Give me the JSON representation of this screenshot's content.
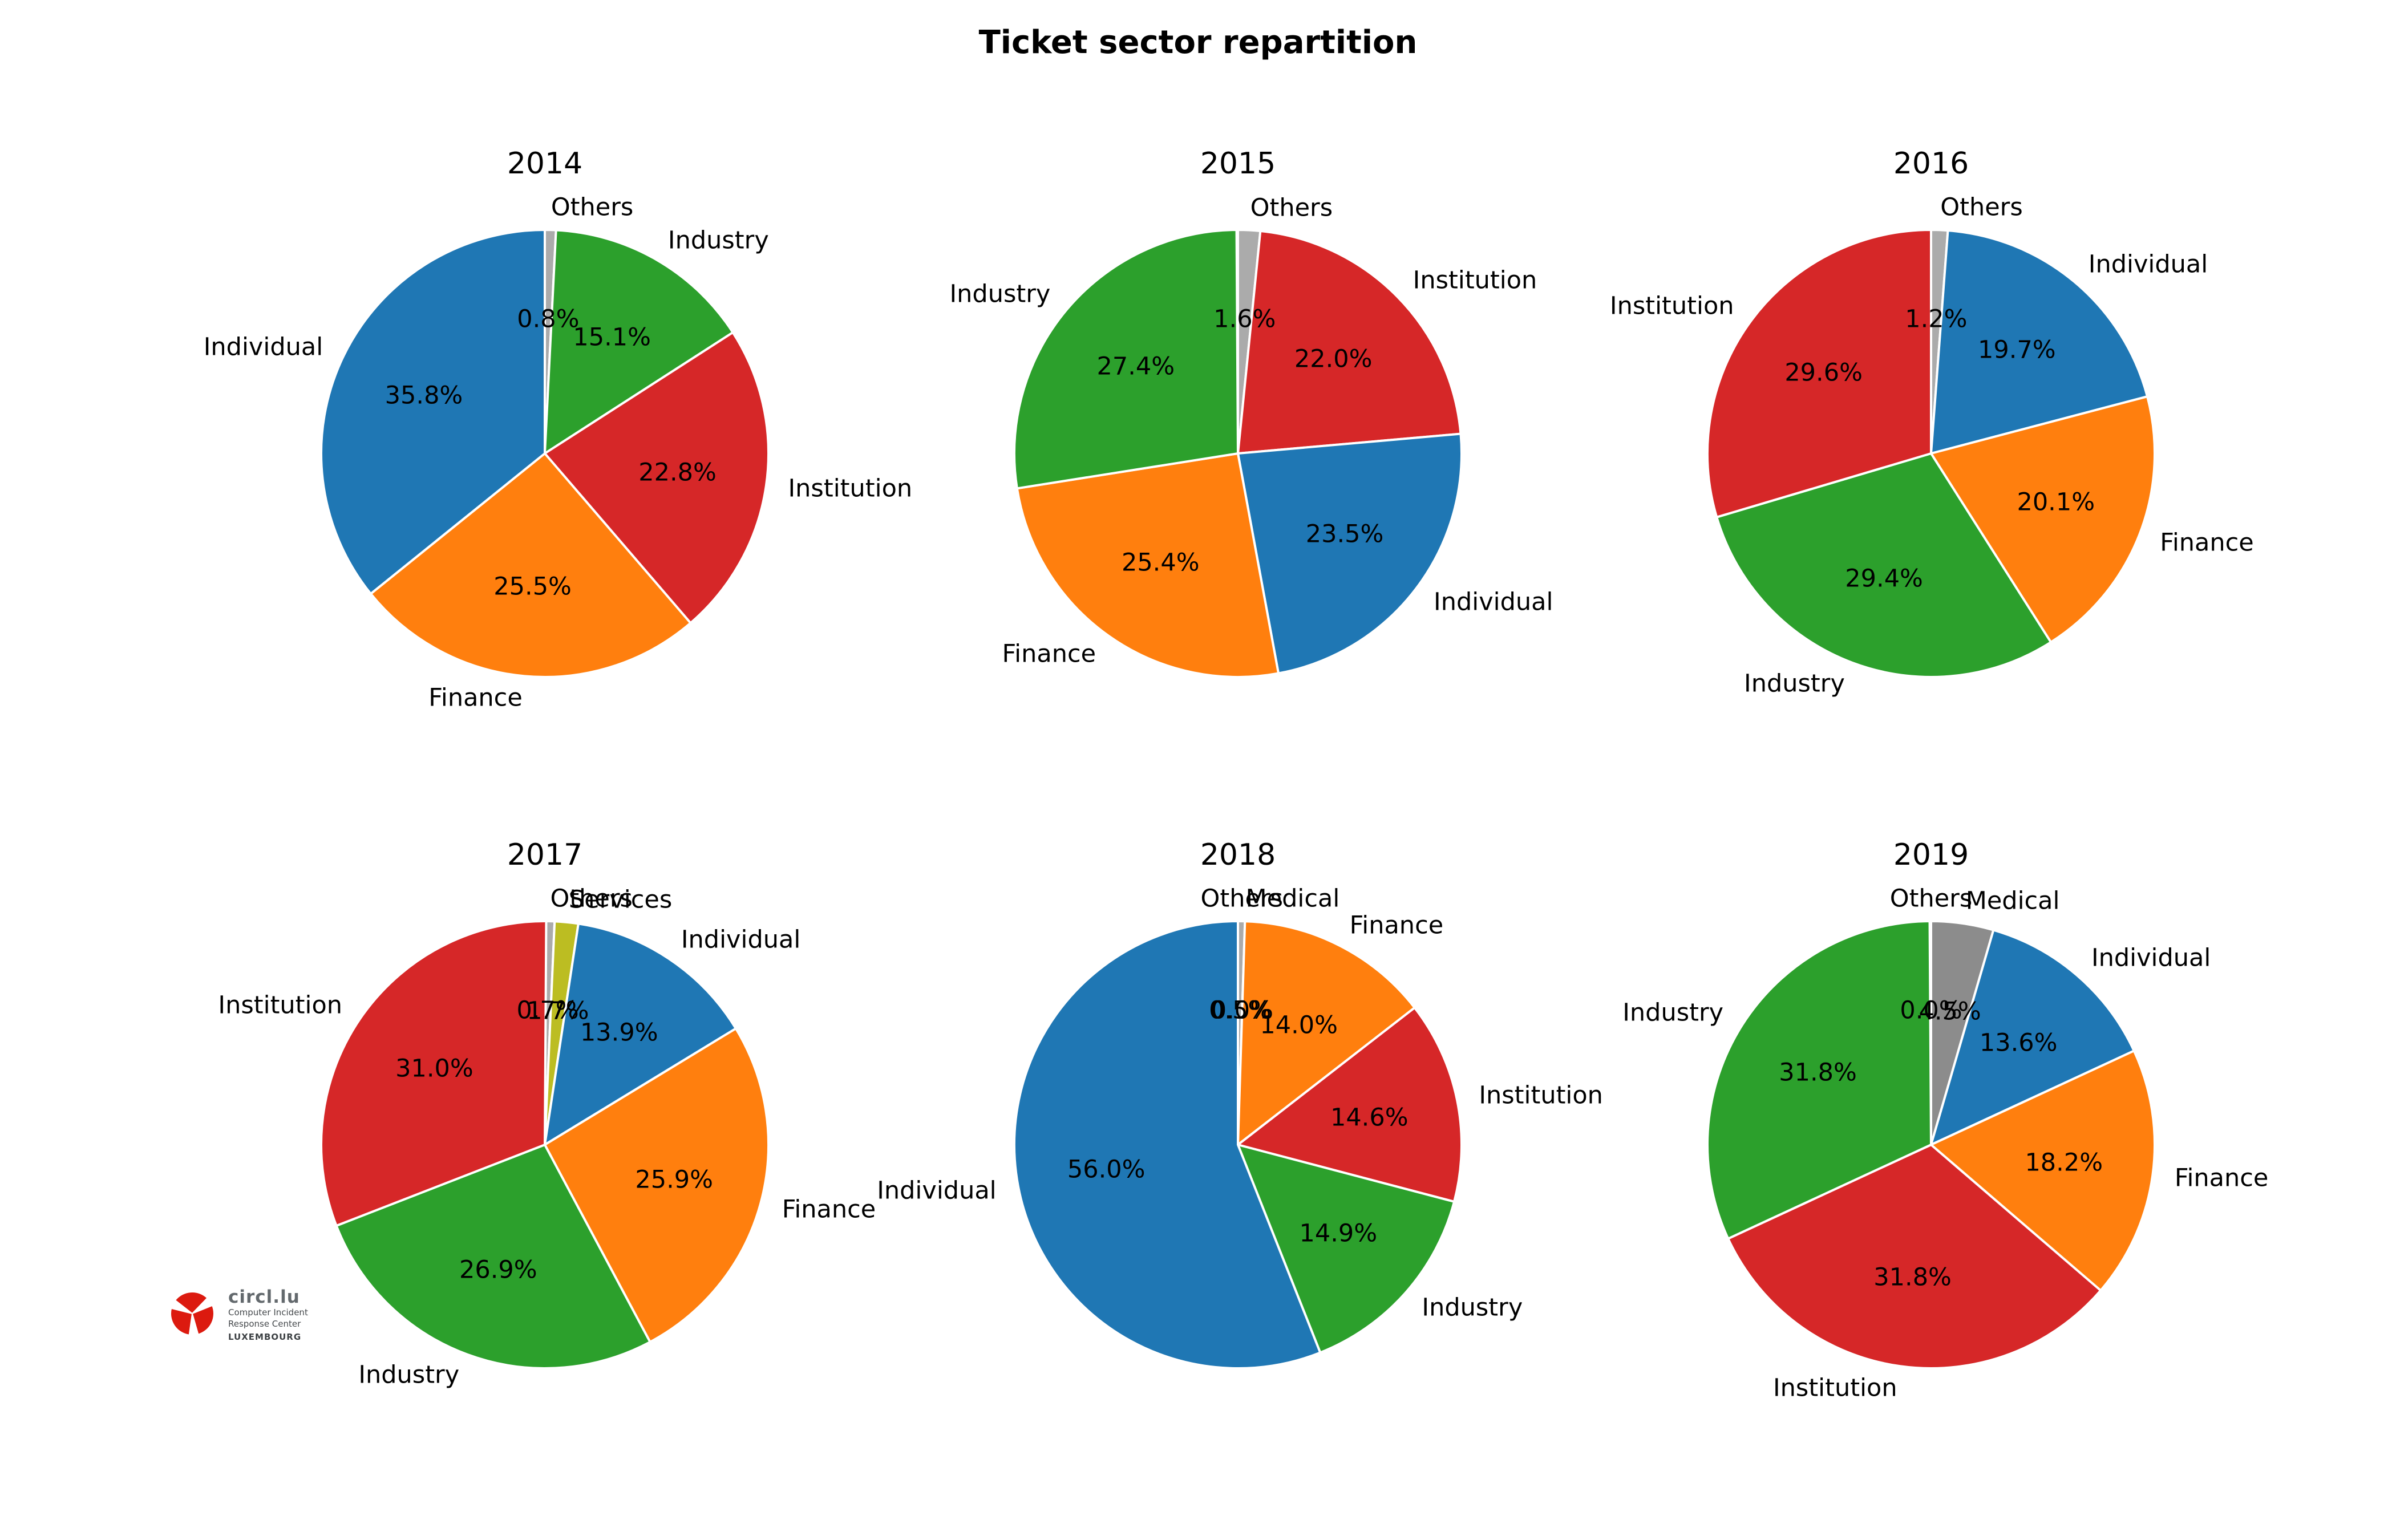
{
  "page": {
    "title": "Ticket sector repartition"
  },
  "logo": {
    "brand": "circl.lu",
    "sub1": "Computer Incident",
    "sub2": "Response Center",
    "sub3": "LUXEMBOURG",
    "icon_red": "#dc1a0f",
    "icon_gray": "#959ba0"
  },
  "palette": {
    "individual": "#1f77b4",
    "finance": "#ff7f0e",
    "industry": "#2ca02c",
    "institution": "#d62728",
    "services": "#bcbd22",
    "medical": "#8c8c8c",
    "others": "#ababab"
  },
  "chart_data": [
    {
      "type": "pie",
      "title": "2014",
      "start": "top",
      "direction": "clockwise",
      "slices": [
        {
          "label": "Others",
          "value": 0.8,
          "pct_label": "0.8%",
          "color": "others"
        },
        {
          "label": "Industry",
          "value": 15.1,
          "pct_label": "15.1%",
          "color": "industry"
        },
        {
          "label": "Institution",
          "value": 22.8,
          "pct_label": "22.8%",
          "color": "institution"
        },
        {
          "label": "Finance",
          "value": 25.5,
          "pct_label": "25.5%",
          "color": "finance"
        },
        {
          "label": "Individual",
          "value": 35.8,
          "pct_label": "35.8%",
          "color": "individual"
        }
      ]
    },
    {
      "type": "pie",
      "title": "2015",
      "start": "top",
      "direction": "clockwise",
      "slices": [
        {
          "label": "Others",
          "value": 1.6,
          "pct_label": "1.6%",
          "color": "others"
        },
        {
          "label": "Institution",
          "value": 22.0,
          "pct_label": "22.0%",
          "color": "institution"
        },
        {
          "label": "Individual",
          "value": 23.5,
          "pct_label": "23.5%",
          "color": "individual"
        },
        {
          "label": "Finance",
          "value": 25.4,
          "pct_label": "25.4%",
          "color": "finance"
        },
        {
          "label": "Industry",
          "value": 27.4,
          "pct_label": "27.4%",
          "color": "industry"
        }
      ]
    },
    {
      "type": "pie",
      "title": "2016",
      "start": "top",
      "direction": "clockwise",
      "slices": [
        {
          "label": "Others",
          "value": 1.2,
          "pct_label": "1.2%",
          "color": "others"
        },
        {
          "label": "Individual",
          "value": 19.7,
          "pct_label": "19.7%",
          "color": "individual"
        },
        {
          "label": "Finance",
          "value": 20.1,
          "pct_label": "20.1%",
          "color": "finance"
        },
        {
          "label": "Industry",
          "value": 29.4,
          "pct_label": "29.4%",
          "color": "industry"
        },
        {
          "label": "Institution",
          "value": 29.6,
          "pct_label": "29.6%",
          "color": "institution"
        }
      ]
    },
    {
      "type": "pie",
      "title": "2017",
      "start": "top",
      "direction": "clockwise",
      "slices": [
        {
          "label": "Others",
          "value": 0.7,
          "pct_label": "0.7%",
          "color": "others"
        },
        {
          "label": "Services",
          "value": 1.7,
          "pct_label": "1.7%",
          "color": "services"
        },
        {
          "label": "Individual",
          "value": 13.9,
          "pct_label": "13.9%",
          "color": "individual"
        },
        {
          "label": "Finance",
          "value": 25.9,
          "pct_label": "25.9%",
          "color": "finance"
        },
        {
          "label": "Industry",
          "value": 26.9,
          "pct_label": "26.9%",
          "color": "industry"
        },
        {
          "label": "Institution",
          "value": 31.0,
          "pct_label": "31.0%",
          "color": "institution"
        }
      ]
    },
    {
      "type": "pie",
      "title": "2018",
      "start": "top",
      "direction": "clockwise",
      "slices": [
        {
          "label": "Others",
          "value": 0.5,
          "pct_label": "0.5%",
          "color": "others"
        },
        {
          "label": "Medical",
          "value": 0.0,
          "pct_label": "0.0%",
          "color": "medical"
        },
        {
          "label": "Finance",
          "value": 14.0,
          "pct_label": "14.0%",
          "color": "finance"
        },
        {
          "label": "Institution",
          "value": 14.6,
          "pct_label": "14.6%",
          "color": "institution"
        },
        {
          "label": "Industry",
          "value": 14.9,
          "pct_label": "14.9%",
          "color": "industry"
        },
        {
          "label": "Individual",
          "value": 56.0,
          "pct_label": "56.0%",
          "color": "individual"
        }
      ]
    },
    {
      "type": "pie",
      "title": "2019",
      "start": "top",
      "direction": "clockwise",
      "slices": [
        {
          "label": "Others",
          "value": 0.0,
          "pct_label": "0.0%",
          "color": "others"
        },
        {
          "label": "Medical",
          "value": 4.5,
          "pct_label": "4.5%",
          "color": "medical"
        },
        {
          "label": "Individual",
          "value": 13.6,
          "pct_label": "13.6%",
          "color": "individual"
        },
        {
          "label": "Finance",
          "value": 18.2,
          "pct_label": "18.2%",
          "color": "finance"
        },
        {
          "label": "Institution",
          "value": 31.8,
          "pct_label": "31.8%",
          "color": "institution"
        },
        {
          "label": "Industry",
          "value": 31.8,
          "pct_label": "31.8%",
          "color": "industry"
        }
      ]
    }
  ]
}
